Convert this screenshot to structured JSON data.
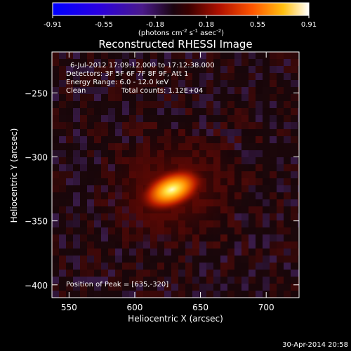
{
  "chart_data": {
    "type": "heatmap",
    "title": "Reconstructed RHESSI Image",
    "xlabel": "Heliocentric X (arcsec)",
    "ylabel": "Heliocentric Y (arcsec)",
    "xlim": [
      537,
      725
    ],
    "ylim": [
      -410,
      -218
    ],
    "x_ticks": [
      550,
      600,
      650,
      700
    ],
    "y_ticks": [
      -250,
      -300,
      -350,
      -400
    ],
    "colorbar": {
      "min": -0.91,
      "max": 0.91,
      "ticks": [
        "-0.91",
        "-0.55",
        "-0.18",
        "0.18",
        "0.55",
        "0.91"
      ],
      "unit_label": "(photons cm",
      "unit_sup1": "-2",
      "unit_mid": " s",
      "unit_sup2": "-1",
      "unit_end": " asec",
      "unit_sup3": "-2",
      "unit_close": ")"
    },
    "peak": {
      "x": 635,
      "y": -320,
      "value": 0.91
    },
    "annotations": {
      "time_range": "6-Jul-2012 17:09:12.000 to 17:12:38.000",
      "detectors": "Detectors: 3F 5F 6F 7F 8F 9F, Att 1",
      "energy_range": "Energy Range: 6.0 - 12.0 keV",
      "method": "Clean",
      "total_counts": "Total counts: 1.12E+04",
      "peak_position": "Position of Peak = [635,-320]"
    },
    "timestamp": "30-Apr-2014 20:58"
  }
}
